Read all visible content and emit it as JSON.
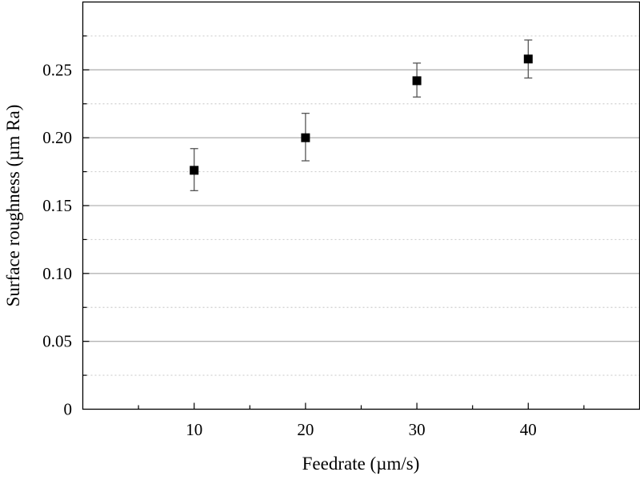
{
  "chart_data": {
    "type": "scatter",
    "title": "",
    "xlabel": "Feedrate (µm/s)",
    "ylabel": "Surface roughness (µm Ra)",
    "xlim": [
      0,
      50
    ],
    "ylim": [
      0,
      0.3
    ],
    "x_ticks": [
      10,
      20,
      30,
      40
    ],
    "x_tick_labels": [
      "10",
      "20",
      "30",
      "40"
    ],
    "y_ticks": [
      0,
      0.05,
      0.1,
      0.15,
      0.2,
      0.25
    ],
    "y_tick_labels": [
      "0",
      "0.05",
      "0.10",
      "0.15",
      "0.20",
      "0.25"
    ],
    "grid": {
      "major": "solid",
      "minor": "dotted",
      "axis": "y"
    },
    "series": [
      {
        "name": "Surface roughness",
        "marker": "square",
        "color": "#000000",
        "x": [
          10,
          20,
          30,
          40
        ],
        "y": [
          0.176,
          0.2,
          0.242,
          0.258
        ],
        "err_low": [
          0.161,
          0.183,
          0.23,
          0.244
        ],
        "err_high": [
          0.192,
          0.218,
          0.255,
          0.272
        ]
      }
    ]
  }
}
